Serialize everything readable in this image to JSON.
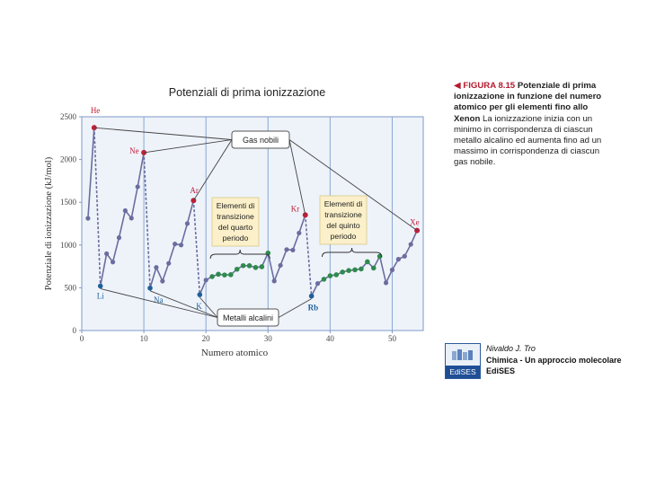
{
  "chart_data": {
    "type": "line",
    "title": "Potenziali di prima ionizzazione",
    "xlabel": "Numero atomico",
    "ylabel": "Potenziale di ionizzazione (kJ/mol)",
    "xlim": [
      0,
      55
    ],
    "ylim": [
      0,
      2500
    ],
    "x_ticks": [
      0,
      10,
      20,
      30,
      40,
      50
    ],
    "y_ticks": [
      0,
      500,
      1000,
      1500,
      2000,
      2500
    ],
    "grid": "vertical lines at 10, 20, 30, 40, 50",
    "series": [
      {
        "color": "#6b6d9e",
        "x": [
          1,
          2,
          3,
          4,
          5,
          6,
          7,
          8,
          9,
          10,
          11,
          12,
          13,
          14,
          15,
          16,
          17,
          18,
          19,
          20,
          21,
          22,
          23,
          24,
          25,
          26,
          27,
          28,
          29,
          30,
          31,
          32,
          33,
          34,
          35,
          36,
          37,
          38,
          39,
          40,
          41,
          42,
          43,
          44,
          45,
          46,
          47,
          48,
          49,
          50,
          51,
          52,
          53,
          54
        ],
        "values": [
          1312,
          2372,
          520,
          899,
          801,
          1086,
          1402,
          1314,
          1681,
          2081,
          496,
          738,
          578,
          786,
          1012,
          1000,
          1251,
          1521,
          419,
          590,
          631,
          658,
          650,
          653,
          717,
          759,
          758,
          737,
          746,
          906,
          579,
          762,
          947,
          941,
          1140,
          1351,
          403,
          550,
          600,
          640,
          652,
          684,
          702,
          710,
          720,
          804,
          731,
          868,
          558,
          709,
          834,
          869,
          1008,
          1170
        ]
      },
      {
        "name": "Gas nobili",
        "color": "#c0203a",
        "x": [
          2,
          10,
          18,
          36,
          54
        ],
        "values": [
          2372,
          2081,
          1521,
          1351,
          1170
        ]
      },
      {
        "name": "Metalli alcalini",
        "color": "#1f5f9a",
        "x": [
          3,
          11,
          19,
          37
        ],
        "values": [
          520,
          496,
          419,
          403
        ]
      },
      {
        "name": "Elementi di transizione",
        "color": "#2f8a4c",
        "x": [
          21,
          22,
          23,
          24,
          25,
          26,
          27,
          28,
          29,
          30,
          39,
          40,
          41,
          42,
          43,
          44,
          45,
          46,
          47,
          48
        ],
        "values": [
          631,
          658,
          650,
          653,
          717,
          759,
          758,
          737,
          746,
          906,
          600,
          640,
          652,
          684,
          702,
          710,
          720,
          804,
          731,
          868
        ]
      }
    ],
    "element_labels": [
      {
        "text": "He",
        "x": 2,
        "y": 2372
      },
      {
        "text": "Ne",
        "x": 10,
        "y": 2081
      },
      {
        "text": "Ar",
        "x": 18,
        "y": 1521
      },
      {
        "text": "Kr",
        "x": 36,
        "y": 1351
      },
      {
        "text": "Xe",
        "x": 54,
        "y": 1170
      },
      {
        "text": "Li",
        "x": 3,
        "y": 520
      },
      {
        "text": "Na",
        "x": 11,
        "y": 496
      },
      {
        "text": "K",
        "x": 19,
        "y": 419
      },
      {
        "text": "Rb",
        "x": 37,
        "y": 403
      }
    ],
    "annotations": {
      "gas_nobili": "Gas nobili",
      "metalli_alcalini": "Metalli alcalini",
      "transizione_quarto": [
        "Elementi di",
        "transizione",
        "del quarto",
        "periodo"
      ],
      "transizione_quinto": [
        "Elementi di",
        "transizione",
        "del quinto",
        "periodo"
      ]
    }
  },
  "caption": {
    "marker": "◀",
    "figure": "FIGURA 8.15",
    "heading": "Potenziale di prima ionizzazione in funzione del numero atomico per gli elementi fino allo Xenon",
    "body": "La ionizzazione inizia con un minimo in corrispondenza di ciascun metallo alcalino ed aumenta fino ad un massimo in corrispondenza di ciascun gas nobile."
  },
  "publisher": {
    "logo_text": "EdiSES",
    "author": "Nivaldo J. Tro",
    "book": "Chimica - Un approccio molecolare",
    "house": "EdiSES"
  }
}
